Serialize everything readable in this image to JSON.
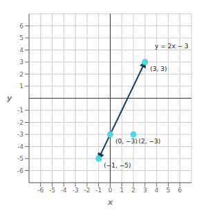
{
  "chart_data": {
    "type": "scatter",
    "xlabel": "x",
    "ylabel": "y",
    "xlim": [
      -7,
      7
    ],
    "ylim": [
      -7,
      7
    ],
    "xticks": [
      -6,
      -5,
      -4,
      -3,
      -2,
      -1,
      0,
      1,
      2,
      3,
      4,
      5,
      6
    ],
    "yticks": [
      -6,
      -5,
      -4,
      -3,
      -2,
      -1,
      1,
      2,
      3,
      4,
      5,
      6
    ],
    "grid": true,
    "series": [
      {
        "type": "line",
        "color": "#1A3F5C",
        "marker": "none",
        "x": [
          -1,
          3
        ],
        "values": [
          -5,
          3
        ]
      },
      {
        "type": "scatter",
        "color": "#4DD9D9",
        "marker": "circle",
        "x": [
          -1,
          0,
          2,
          3
        ],
        "values": [
          -5,
          -3,
          -3,
          3
        ],
        "data_labels": true,
        "value_labels": [
          "(−1, −5)",
          "(0, −3)",
          "(2, −3)",
          "(3, 3)"
        ]
      }
    ],
    "annotations": [
      {
        "text": "y = 2x − 3",
        "x": 3.55,
        "y": 4.3
      }
    ]
  }
}
